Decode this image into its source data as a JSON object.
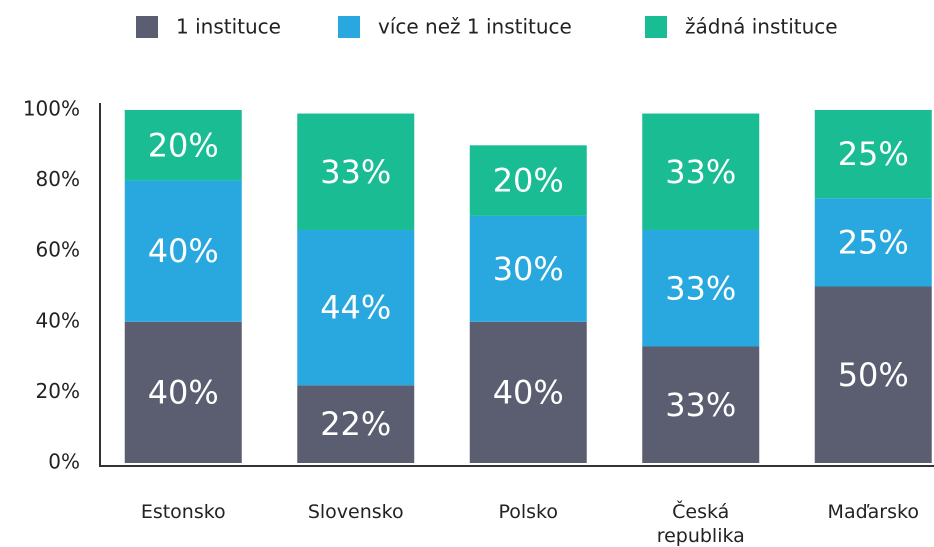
{
  "chart_data": {
    "type": "stacked_bar",
    "categories": [
      "Estonsko",
      "Slovensko",
      "Polsko",
      "Česká republika",
      "Maďarsko"
    ],
    "series": [
      {
        "name": "1 instituce",
        "color": "#5b5e70",
        "values": [
          40,
          22,
          40,
          33,
          50
        ],
        "value_labels": [
          "40%",
          "22%",
          "40%",
          "33%",
          "50%"
        ]
      },
      {
        "name": "více než 1 instituce",
        "color": "#29a8e0",
        "values": [
          40,
          44,
          30,
          33,
          25
        ],
        "value_labels": [
          "40%",
          "44%",
          "30%",
          "33%",
          "25%"
        ]
      },
      {
        "name": "žádná instituce",
        "color": "#1abc94",
        "values": [
          20,
          33,
          20,
          33,
          25
        ],
        "value_labels": [
          "20%",
          "33%",
          "20%",
          "33%",
          "25%"
        ]
      }
    ],
    "ylim": [
      0,
      100
    ],
    "yticks": [
      {
        "value": 0,
        "label": "0%"
      },
      {
        "value": 20,
        "label": "20%"
      },
      {
        "value": 40,
        "label": "40%"
      },
      {
        "value": 60,
        "label": "60%"
      },
      {
        "value": 80,
        "label": "80%"
      },
      {
        "value": 100,
        "label": "100%"
      }
    ],
    "legend": "top"
  }
}
